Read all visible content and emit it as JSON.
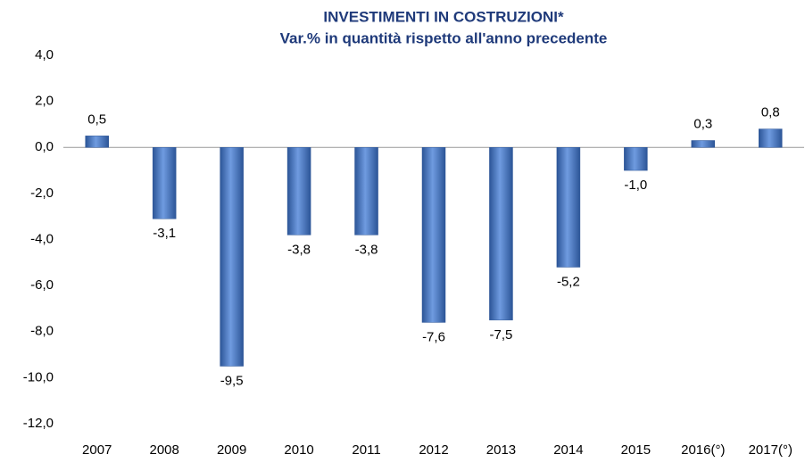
{
  "chart_data": {
    "type": "bar",
    "title": "INVESTIMENTI IN COSTRUZIONI*",
    "subtitle": "Var.% in quantità rispetto all'anno precedente",
    "categories": [
      "2007",
      "2008",
      "2009",
      "2010",
      "2011",
      "2012",
      "2013",
      "2014",
      "2015",
      "2016(°)",
      "2017(°)"
    ],
    "values": [
      0.5,
      -3.1,
      -9.5,
      -3.8,
      -3.8,
      -7.6,
      -7.5,
      -5.2,
      -1.0,
      0.3,
      0.8
    ],
    "value_labels": [
      "0,5",
      "-3,1",
      "-9,5",
      "-3,8",
      "-3,8",
      "-7,6",
      "-7,5",
      "-5,2",
      "-1,0",
      "0,3",
      "0,8"
    ],
    "color": "#4f81bd",
    "ylim": [
      -12,
      4
    ],
    "yticks": [
      {
        "value": 4,
        "label": "4,0"
      },
      {
        "value": 2,
        "label": "2,0"
      },
      {
        "value": 0,
        "label": "0,0"
      },
      {
        "value": -2,
        "label": "-2,0"
      },
      {
        "value": -4,
        "label": "-4,0"
      },
      {
        "value": -6,
        "label": "-6,0"
      },
      {
        "value": -8,
        "label": "-8,0"
      },
      {
        "value": -10,
        "label": "-10,0"
      },
      {
        "value": -12,
        "label": "-12,0"
      }
    ],
    "grid": false
  }
}
